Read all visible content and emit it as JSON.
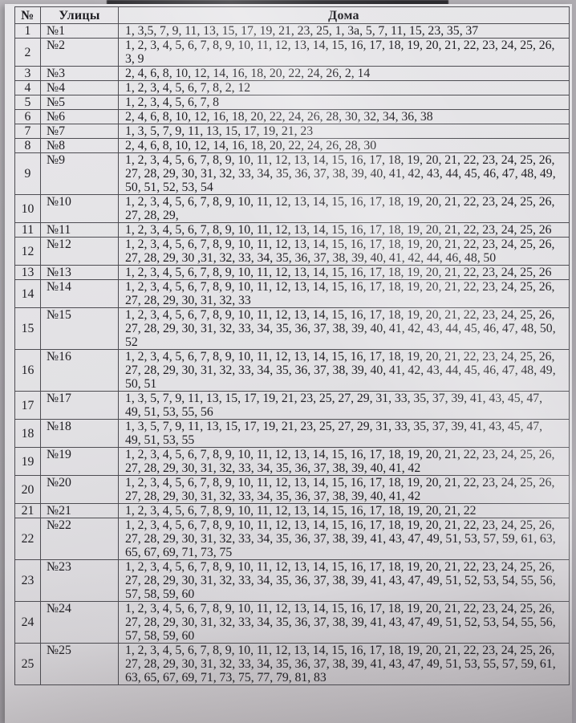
{
  "colors": {
    "background": "#a6a3a8",
    "paper": "#e2e1e4",
    "grid_line": "#4d4c52",
    "ink": "#1e1d22",
    "photo_dark_edge": "#2e2d31"
  },
  "table": {
    "columns": [
      "№",
      "Улицы",
      "Дома"
    ],
    "rows": [
      {
        "n": "1",
        "street": "№1",
        "houses": "1, 3,5, 7, 9, 11, 13, 15, 17, 19, 21, 23, 25, 1, 3а, 5, 7, 11, 15, 23, 35, 37"
      },
      {
        "n": "2",
        "street": "№2",
        "houses": "1, 2, 3, 4, 5, 6, 7, 8, 9, 10, 11, 12, 13, 14, 15, 16, 17, 18, 19, 20, 21, 22, 23, 24, 25, 26, 3, 9"
      },
      {
        "n": "3",
        "street": "№3",
        "houses": "2, 4, 6, 8, 10, 12, 14, 16, 18, 20, 22, 24, 26, 2, 14"
      },
      {
        "n": "4",
        "street": "№4",
        "houses": "1, 2, 3, 4, 5, 6, 7, 8, 2, 12"
      },
      {
        "n": "5",
        "street": "№5",
        "houses": "1, 2, 3, 4, 5, 6, 7, 8"
      },
      {
        "n": "6",
        "street": "№6",
        "houses": "2, 4, 6, 8, 10, 12, 16, 18, 20, 22, 24, 26, 28, 30, 32, 34, 36, 38"
      },
      {
        "n": "7",
        "street": "№7",
        "houses": "1, 3, 5, 7, 9, 11, 13, 15, 17, 19, 21, 23"
      },
      {
        "n": "8",
        "street": "№8",
        "houses": "2, 4, 6, 8, 10, 12, 14, 16, 18, 20, 22, 24, 26, 28, 30"
      },
      {
        "n": "9",
        "street": "№9",
        "houses": "1, 2, 3, 4, 5, 6, 7, 8, 9, 10, 11, 12, 13, 14, 15, 16, 17, 18, 19, 20, 21, 22, 23, 24, 25, 26, 27, 28, 29, 30, 31, 32, 33, 34, 35, 36, 37, 38, 39, 40, 41, 42, 43, 44, 45, 46, 47, 48, 49, 50, 51, 52, 53, 54"
      },
      {
        "n": "10",
        "street": "№10",
        "houses": "1, 2, 3, 4, 5, 6, 7, 8, 9, 10, 11, 12, 13, 14, 15, 16, 17, 18, 19, 20, 21, 22, 23, 24, 25, 26, 27, 28, 29,"
      },
      {
        "n": "11",
        "street": "№11",
        "houses": "1, 2, 3, 4, 5, 6, 7, 8, 9, 10, 11, 12, 13, 14, 15, 16, 17, 18, 19, 20, 21, 22, 23, 24, 25, 26"
      },
      {
        "n": "12",
        "street": "№12",
        "houses": "1, 2, 3, 4, 5, 6, 7, 8, 9, 10, 11, 12, 13, 14, 15, 16, 17, 18, 19, 20, 21, 22, 23, 24, 25, 26, 27, 28, 29, 30 ,31, 32, 33, 34, 35, 36, 37, 38, 39, 40, 41, 42, 44, 46, 48, 50"
      },
      {
        "n": "13",
        "street": "№13",
        "houses": "1, 2, 3, 4, 5, 6, 7, 8, 9, 10, 11, 12, 13, 14, 15, 16, 17, 18, 19, 20, 21, 22, 23, 24, 25, 26"
      },
      {
        "n": "14",
        "street": "№14",
        "houses": "1, 2, 3, 4, 5, 6, 7, 8, 9, 10, 11, 12, 13, 14, 15, 16, 17, 18, 19, 20, 21, 22, 23, 24, 25, 26, 27, 28, 29, 30, 31, 32, 33"
      },
      {
        "n": "15",
        "street": "№15",
        "houses": "1, 2, 3, 4, 5, 6, 7, 8, 9, 10, 11, 12, 13, 14, 15, 16, 17, 18, 19, 20, 21, 22, 23, 24, 25, 26, 27, 28, 29, 30, 31, 32, 33, 34, 35, 36, 37, 38, 39, 40, 41, 42, 43, 44, 45, 46, 47, 48, 50, 52"
      },
      {
        "n": "16",
        "street": "№16",
        "houses": "1, 2, 3, 4, 5, 6, 7, 8, 9, 10, 11, 12, 13, 14, 15, 16, 17, 18, 19, 20, 21, 22, 23, 24, 25, 26, 27, 28, 29, 30, 31, 32, 33, 34, 35, 36, 37, 38, 39, 40, 41, 42, 43, 44, 45, 46, 47, 48, 49, 50, 51"
      },
      {
        "n": "17",
        "street": "№17",
        "houses": "1, 3, 5, 7, 9, 11, 13, 15, 17, 19, 21, 23, 25, 27, 29, 31, 33, 35, 37, 39, 41, 43, 45, 47, 49, 51, 53, 55, 56"
      },
      {
        "n": "18",
        "street": "№18",
        "houses": "1, 3, 5, 7, 9, 11, 13, 15, 17, 19, 21, 23, 25, 27, 29, 31, 33, 35, 37, 39, 41, 43, 45, 47, 49, 51, 53, 55"
      },
      {
        "n": "19",
        "street": "№19",
        "houses": "1, 2, 3, 4, 5, 6, 7, 8, 9, 10, 11, 12, 13, 14, 15, 16, 17, 18, 19, 20, 21, 22, 23, 24, 25, 26, 27, 28, 29, 30, 31, 32, 33, 34, 35, 36, 37, 38, 39, 40, 41, 42"
      },
      {
        "n": "20",
        "street": "№20",
        "houses": "1, 2, 3, 4, 5, 6, 7, 8, 9, 10, 11, 12, 13, 14, 15, 16, 17, 18, 19, 20, 21, 22, 23, 24, 25, 26, 27, 28, 29, 30, 31, 32, 33, 34, 35, 36, 37, 38, 39, 40, 41, 42"
      },
      {
        "n": "21",
        "street": "№21",
        "houses": "1, 2, 3, 4, 5, 6, 7, 8, 9, 10, 11, 12, 13, 14, 15, 16, 17, 18, 19, 20, 21, 22"
      },
      {
        "n": "22",
        "street": "№22",
        "houses": "1, 2, 3, 4, 5, 6, 7, 8, 9, 10, 11, 12, 13, 14, 15, 16, 17, 18, 19, 20, 21, 22, 23, 24, 25, 26, 27, 28, 29, 30, 31, 32, 33, 34, 35, 36, 37, 38, 39, 41, 43, 47, 49, 51, 53, 57, 59, 61, 63, 65, 67, 69, 71, 73, 75"
      },
      {
        "n": "23",
        "street": "№23",
        "houses": "1, 2, 3, 4, 5, 6, 7, 8, 9, 10, 11, 12, 13, 14, 15, 16, 17, 18, 19, 20, 21, 22, 23, 24, 25, 26, 27, 28, 29, 30, 31, 32, 33, 34, 35, 36, 37, 38, 39, 41, 43, 47, 49, 51, 52, 53, 54, 55, 56, 57, 58, 59, 60"
      },
      {
        "n": "24",
        "street": "№24",
        "houses": "1, 2, 3, 4, 5, 6, 7, 8, 9, 10, 11, 12, 13, 14, 15, 16, 17, 18, 19, 20, 21, 22, 23, 24, 25, 26, 27, 28, 29, 30, 31, 32, 33, 34, 35, 36, 37, 38, 39, 41, 43, 47, 49, 51, 52, 53, 54, 55, 56, 57, 58, 59, 60"
      },
      {
        "n": "25",
        "street": "№25",
        "houses": "1, 2, 3, 4, 5, 6, 7, 8, 9, 10, 11, 12, 13, 14, 15, 16, 17, 18, 19, 20, 21, 22, 23, 24, 25, 26, 27, 28, 29, 30, 31, 32, 33, 34, 35, 36, 37, 38, 39, 41, 43, 47, 49, 51, 53, 55, 57, 59, 61, 63, 65, 67, 69, 71, 73, 75, 77, 79, 81, 83"
      }
    ]
  }
}
